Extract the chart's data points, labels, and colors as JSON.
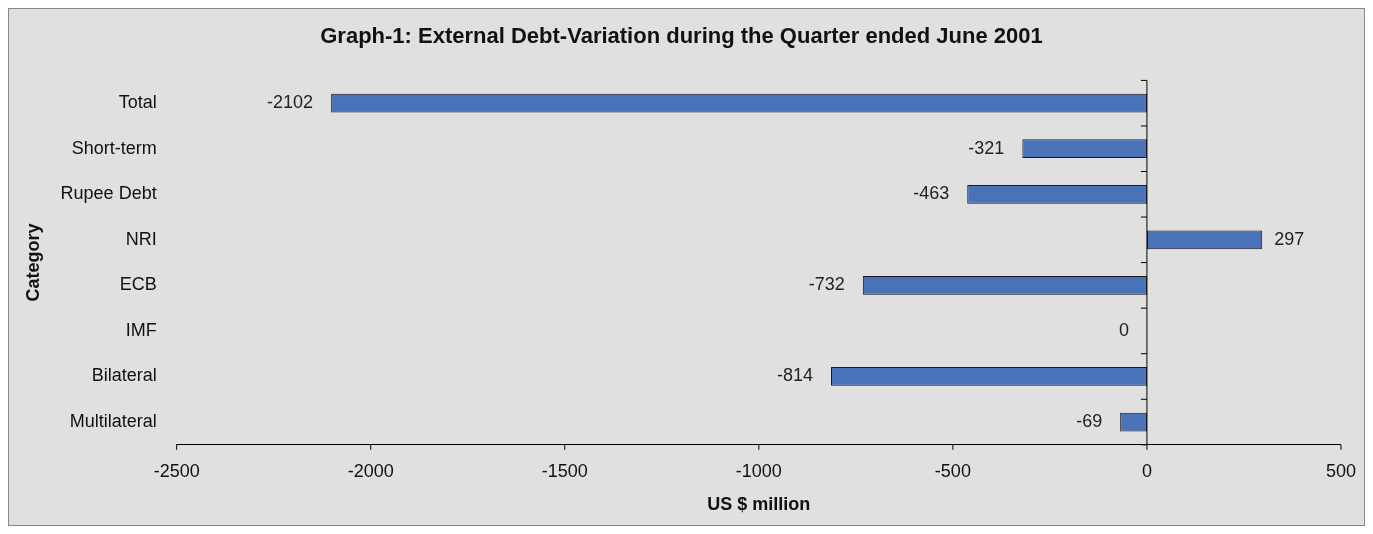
{
  "chart_data": {
    "type": "bar",
    "orientation": "horizontal",
    "title": "Graph-1: External Debt-Variation during the Quarter ended June 2001",
    "xlabel": "US $ million",
    "ylabel": "Category",
    "categories": [
      "Total",
      "Short-term",
      "Rupee Debt",
      "NRI",
      "ECB",
      "IMF",
      "Bilateral",
      "Multilateral"
    ],
    "values": [
      -2102,
      -321,
      -463,
      297,
      -732,
      0,
      -814,
      -69
    ],
    "color": "#4a72b8",
    "xlim": [
      -2500,
      500
    ],
    "xticks": [
      -2500,
      -2000,
      -1500,
      -1000,
      -500,
      0,
      500
    ],
    "grid": false,
    "ref_lines": [
      {
        "axis": "x",
        "value": 0,
        "color": "#000000"
      }
    ],
    "data_labels": true
  }
}
